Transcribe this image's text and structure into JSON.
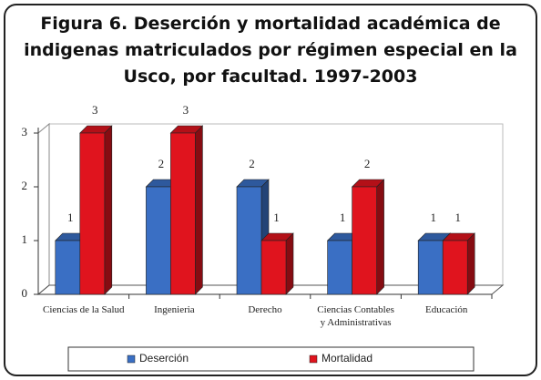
{
  "chart_data": {
    "type": "bar3d",
    "title": "Figura 6. Deserción y mortalidad académica de indigenas matriculados por régimen especial en la Usco, por facultad. 1997-2003",
    "categories": [
      "Ciencias de la Salud",
      "Ingenieria",
      "Derecho",
      "Ciencias Contables y Administrativas",
      "Educación"
    ],
    "series": [
      {
        "name": "Deserción",
        "color": "#3a6fc4",
        "values": [
          1,
          2,
          2,
          1,
          1
        ]
      },
      {
        "name": "Mortalidad",
        "color": "#e0141e",
        "values": [
          3,
          3,
          1,
          2,
          1
        ]
      }
    ],
    "ylim": [
      0,
      3
    ],
    "yticks": [
      0,
      1,
      2,
      3
    ],
    "legend": "bottom"
  }
}
